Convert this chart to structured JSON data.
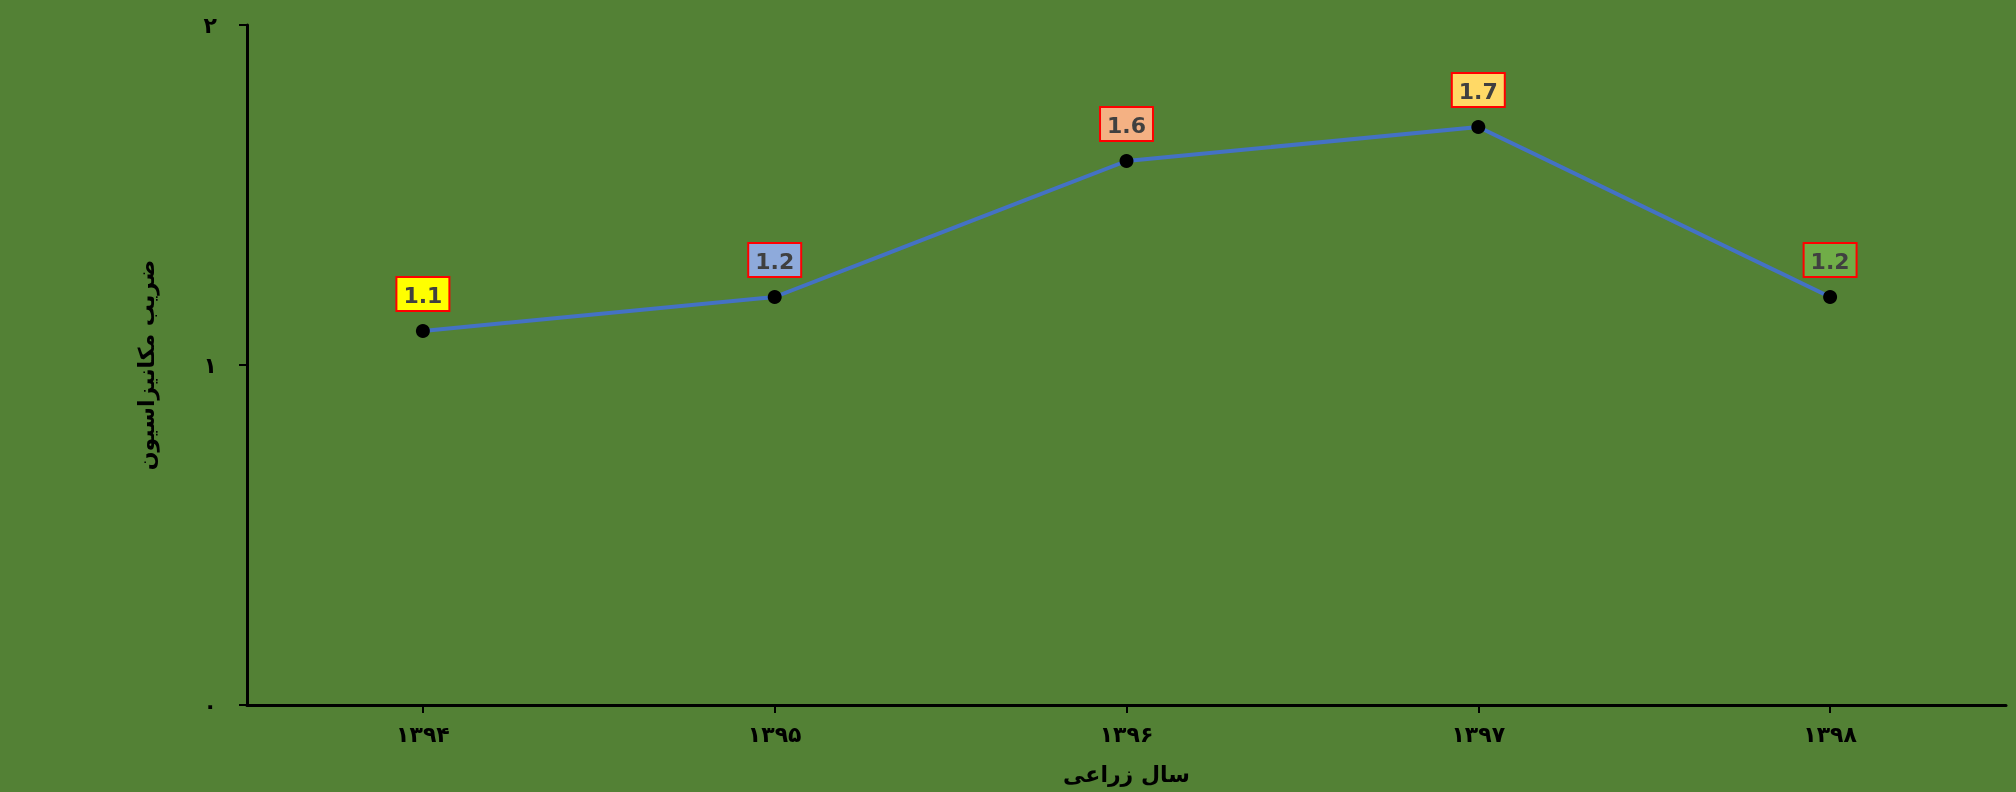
{
  "chart_data": {
    "type": "line",
    "xlabel": "سال زراعی",
    "ylabel": "ضریب مکانیزاسیون",
    "categories": [
      "۱۳۹۴",
      "۱۳۹۵",
      "۱۳۹۶",
      "۱۳۹۷",
      "۱۳۹۸"
    ],
    "series": [
      {
        "color": "#4472c4",
        "values": [
          1.1,
          1.2,
          1.6,
          1.7,
          1.2
        ]
      }
    ],
    "ylim": [
      0,
      2
    ],
    "yticks": [
      {
        "value": 0,
        "label": "۰"
      },
      {
        "value": 1,
        "label": "۱"
      },
      {
        "value": 2,
        "label": "۲"
      }
    ],
    "data_labels": true,
    "grid": false,
    "marker": "circle",
    "line_style": "solid"
  }
}
